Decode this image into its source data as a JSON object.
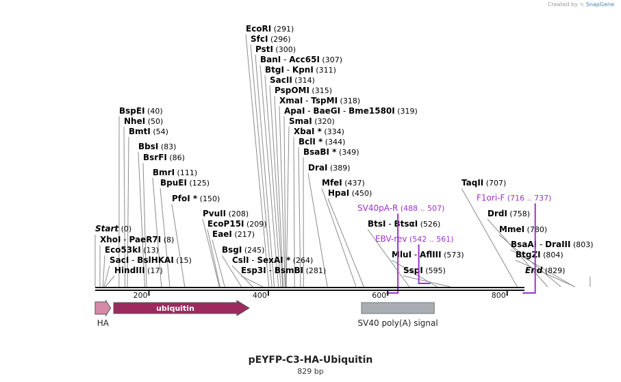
{
  "credit": {
    "prefix": "Created by",
    "brand": "SnapGene"
  },
  "map": {
    "name": "pEYFP-C3-HA-Ubiquitin",
    "length_label": "829 bp"
  },
  "scale": {
    "start": 110,
    "end": 829,
    "ticks": [
      200,
      400,
      600,
      800
    ]
  },
  "colors": {
    "enzyme": "#000000",
    "primer": "#9b30d0",
    "ha": "#d48aa8",
    "ubiquitin": "#9c2a5e",
    "sv40": "#a9adb3"
  },
  "enzymes": [
    {
      "name": "Start",
      "pos": "(0)",
      "site": 110,
      "italic": true
    },
    {
      "name": "XhoI",
      "extra": "PaeR7I",
      "pos": "(8)",
      "site": 118
    },
    {
      "name": "Eco53kI",
      "pos": "(13)",
      "site": 123
    },
    {
      "name": "SacI",
      "extra": "BslHKAI",
      "pos": "(15)",
      "site": 125
    },
    {
      "name": "HindIII",
      "pos": "(17)",
      "site": 127
    },
    {
      "name": "BspEI",
      "pos": "(40)",
      "site": 150
    },
    {
      "name": "NheI",
      "pos": "(50)",
      "site": 160
    },
    {
      "name": "BmtI",
      "pos": "(54)",
      "site": 164
    },
    {
      "name": "BbsI",
      "pos": "(83)",
      "site": 193
    },
    {
      "name": "BsrFI",
      "pos": "(86)",
      "site": 196
    },
    {
      "name": "BmrI",
      "pos": "(111)",
      "site": 221
    },
    {
      "name": "BpuEI",
      "pos": "(125)",
      "site": 235
    },
    {
      "name": "PfoI *",
      "pos": "(150)",
      "site": 260
    },
    {
      "name": "PvuII",
      "pos": "(208)",
      "site": 318
    },
    {
      "name": "EcoP15I",
      "pos": "(209)",
      "site": 319
    },
    {
      "name": "EaeI",
      "pos": "(217)",
      "site": 327
    },
    {
      "name": "BsgI",
      "pos": "(245)",
      "site": 355
    },
    {
      "name": "CslI",
      "extra": "SexAI *",
      "pos": "(264)",
      "site": 374
    },
    {
      "name": "Esp3I",
      "extra": "BsmBI",
      "pos": "(281)",
      "site": 391
    },
    {
      "name": "EcoRI",
      "pos": "(291)",
      "site": 401
    },
    {
      "name": "SfcI",
      "pos": "(296)",
      "site": 406
    },
    {
      "name": "PstI",
      "pos": "(300)",
      "site": 410
    },
    {
      "name": "BanI",
      "extra": "Acc65I",
      "pos": "(307)",
      "site": 417
    },
    {
      "name": "BtgI",
      "extra": "KpnI",
      "pos": "(311)",
      "site": 421
    },
    {
      "name": "SacII",
      "pos": "(314)",
      "site": 424
    },
    {
      "name": "PspOMI",
      "pos": "(315)",
      "site": 425
    },
    {
      "name": "XmaI",
      "extra": "TspMI",
      "pos": "(318)",
      "site": 428
    },
    {
      "name": "ApaI",
      "extra": "BaeGI",
      "extra2": "Bme1580I",
      "pos": "(319)",
      "site": 429
    },
    {
      "name": "SmaI",
      "pos": "(320)",
      "site": 430
    },
    {
      "name": "XbaI *",
      "pos": "(334)",
      "site": 444
    },
    {
      "name": "BclI *",
      "pos": "(344)",
      "site": 454
    },
    {
      "name": "BsaBI *",
      "pos": "(349)",
      "site": 459
    },
    {
      "name": "DraI",
      "pos": "(389)",
      "site": 499
    },
    {
      "name": "MfeI",
      "pos": "(437)",
      "site": 547
    },
    {
      "name": "HpaI",
      "pos": "(450)",
      "site": 560
    },
    {
      "name": "BtsI",
      "extra": "BtsαI",
      "pos": "(526)",
      "site": 636
    },
    {
      "name": "MluI",
      "extra": "AflIII",
      "pos": "(573)",
      "site": 683
    },
    {
      "name": "SspI",
      "pos": "(595)",
      "site": 705
    },
    {
      "name": "TaqII",
      "pos": "(707)",
      "site": 817
    },
    {
      "name": "DrdI",
      "pos": "(758)",
      "site": 868
    },
    {
      "name": "MmeI",
      "pos": "(780)",
      "site": 890
    },
    {
      "name": "BsaAI",
      "extra": "DraIII",
      "pos": "(803)",
      "site": 913
    },
    {
      "name": "BtgZI",
      "pos": "(804)",
      "site": 914
    },
    {
      "name": "End",
      "pos": "(829)",
      "site": 939,
      "italic": true
    }
  ],
  "primers": [
    {
      "name": "SV40pA-R",
      "range": "(488 .. 507)",
      "start": 598,
      "end": 617,
      "dir": "reverse"
    },
    {
      "name": "EBV-rev",
      "range": "(542 .. 561)",
      "start": 652,
      "end": 671,
      "dir": "forward"
    },
    {
      "name": "F1ori-F",
      "range": "(716 .. 737)",
      "start": 826,
      "end": 847,
      "dir": "reverse"
    }
  ],
  "features": [
    {
      "name": "HA",
      "start": 110,
      "end": 136,
      "color": "#d48aa8",
      "label_inside": false
    },
    {
      "name": "ubiquitin",
      "start": 141,
      "end": 368,
      "color": "#9c2a5e",
      "label_inside": true
    },
    {
      "name": "SV40 poly(A) signal",
      "start": 556,
      "end": 678,
      "color": "#a9adb3",
      "label_inside": false
    }
  ]
}
